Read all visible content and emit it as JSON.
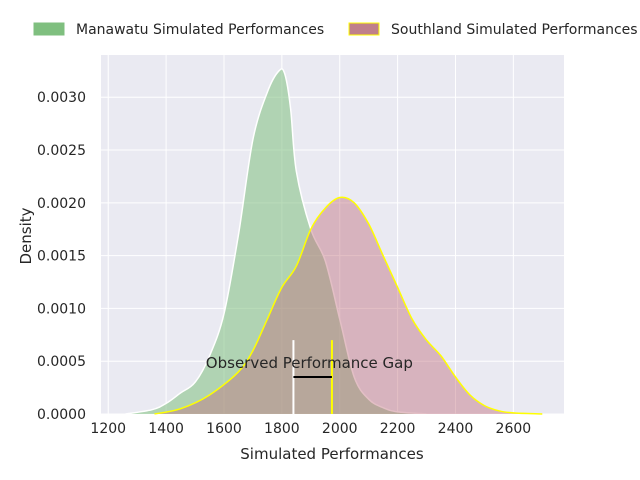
{
  "chart_data": {
    "type": "area",
    "title": "",
    "xlabel": "Simulated Performances",
    "ylabel": "Density",
    "xlim": [
      1175,
      2775
    ],
    "ylim": [
      0,
      0.0034
    ],
    "xticks": [
      1200,
      1400,
      1600,
      1800,
      2000,
      2200,
      2400,
      2600
    ],
    "yticks": [
      0,
      0.0005,
      0.001,
      0.0015,
      0.002,
      0.0025,
      0.003
    ],
    "ytick_labels": [
      "0.0000",
      "0.0005",
      "0.0010",
      "0.0015",
      "0.0020",
      "0.0025",
      "0.0030"
    ],
    "grid": true,
    "legend_position": "top",
    "series": [
      {
        "name": "Manawatu Simulated Performances",
        "fill": "#7fbf7f",
        "fill_opacity": 0.55,
        "stroke": "#ffffff",
        "x": [
          1260,
          1350,
          1400,
          1450,
          1500,
          1550,
          1600,
          1650,
          1700,
          1750,
          1790,
          1810,
          1830,
          1850,
          1900,
          1950,
          2000,
          2050,
          2100,
          2150,
          2200,
          2300
        ],
        "y": [
          0.0,
          4e-05,
          0.0001,
          0.0002,
          0.0003,
          0.00055,
          0.00095,
          0.0017,
          0.0026,
          0.00305,
          0.00325,
          0.00322,
          0.0029,
          0.0023,
          0.00175,
          0.00145,
          0.0009,
          0.00035,
          0.00014,
          6e-05,
          2e-05,
          0.0
        ]
      },
      {
        "name": "Southland Simulated Performances",
        "fill": "#c0707f",
        "fill_opacity": 0.45,
        "stroke": "#ffff00",
        "x": [
          1360,
          1450,
          1550,
          1650,
          1700,
          1750,
          1800,
          1850,
          1900,
          1950,
          2000,
          2050,
          2100,
          2150,
          2200,
          2250,
          2300,
          2350,
          2400,
          2450,
          2500,
          2550,
          2600,
          2700
        ],
        "y": [
          0.0,
          5e-05,
          0.00018,
          0.0004,
          0.0006,
          0.0009,
          0.0012,
          0.0014,
          0.00175,
          0.00195,
          0.00205,
          0.002,
          0.0018,
          0.0015,
          0.0012,
          0.0009,
          0.0007,
          0.00055,
          0.00035,
          0.00018,
          8e-05,
          3e-05,
          1e-05,
          0.0
        ]
      }
    ],
    "annotations": [
      {
        "text": "Observed Performance Gap",
        "x": 1895,
        "y": 0.0004,
        "markers": [
          {
            "x": 1840,
            "y_top": 0.0007,
            "color": "#ffffff"
          },
          {
            "x": 1973,
            "y_top": 0.0007,
            "color": "#ffff00"
          }
        ],
        "gap_line": {
          "x1": 1840,
          "x2": 1973,
          "y": 0.00035,
          "color": "#000000"
        }
      }
    ]
  }
}
